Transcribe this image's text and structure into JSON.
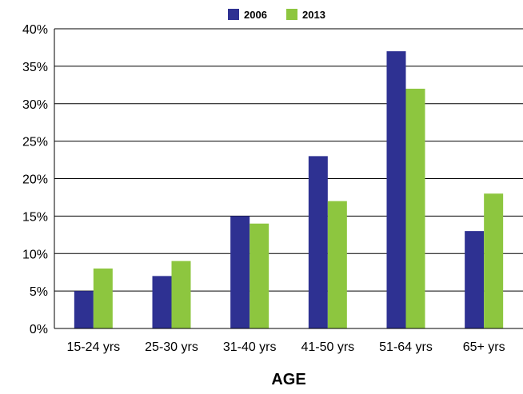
{
  "chart_data": {
    "type": "bar",
    "categories": [
      "15-24 yrs",
      "25-30 yrs",
      "31-40 yrs",
      "41-50 yrs",
      "51-64 yrs",
      "65+ yrs"
    ],
    "series": [
      {
        "name": "2006",
        "values": [
          5,
          7,
          15,
          23,
          37,
          13
        ],
        "color": "#2e3192"
      },
      {
        "name": "2013",
        "values": [
          8,
          9,
          14,
          17,
          32,
          18
        ],
        "color": "#8dc63f"
      }
    ],
    "xlabel": "AGE",
    "ylabel": "",
    "ylim": [
      0,
      40
    ],
    "yticks": [
      0,
      5,
      10,
      15,
      20,
      25,
      30,
      35,
      40
    ],
    "ytick_labels": [
      "0%",
      "5%",
      "10%",
      "15%",
      "20%",
      "25%",
      "30%",
      "35%",
      "40%"
    ],
    "grid": true,
    "legend_position": "top-center"
  }
}
